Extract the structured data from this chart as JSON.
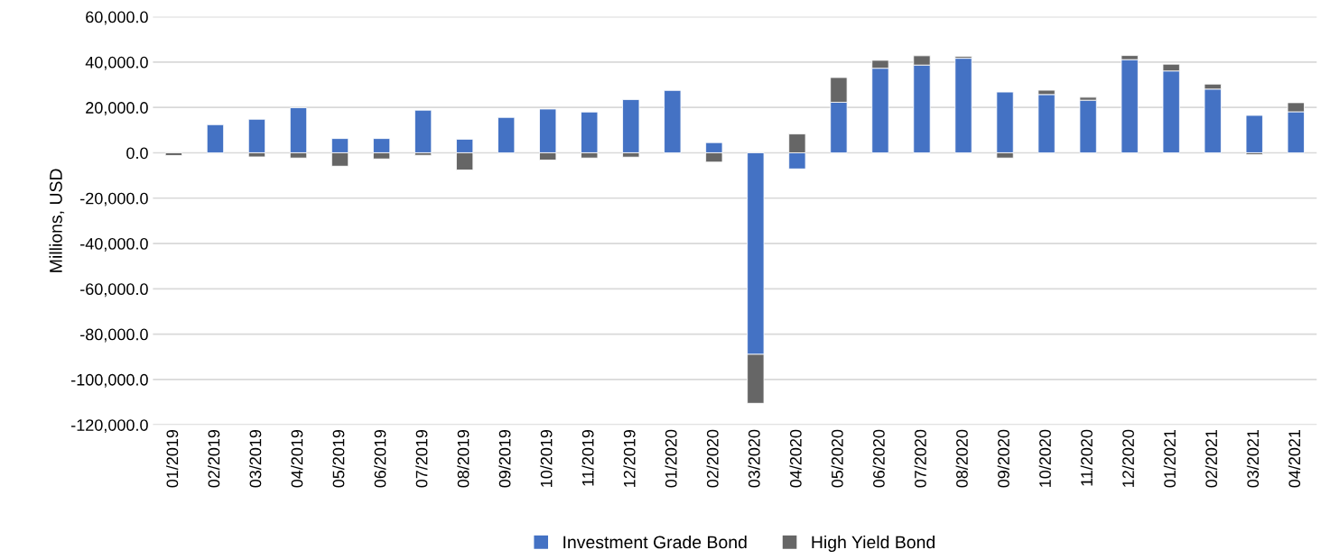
{
  "chart_data": {
    "type": "bar",
    "stacked": true,
    "ylabel": "Millions, USD",
    "categories": [
      "01/2019",
      "02/2019",
      "03/2019",
      "04/2019",
      "05/2019",
      "06/2019",
      "07/2019",
      "08/2019",
      "09/2019",
      "10/2019",
      "11/2019",
      "12/2019",
      "01/2020",
      "02/2020",
      "03/2020",
      "04/2020",
      "05/2020",
      "06/2020",
      "07/2020",
      "08/2020",
      "09/2020",
      "10/2020",
      "11/2020",
      "12/2020",
      "01/2021",
      "02/2021",
      "03/2021",
      "04/2021"
    ],
    "series": [
      {
        "name": "Investment Grade Bond",
        "color": "#4472c4",
        "values": [
          null,
          12400,
          14800,
          19900,
          6300,
          6300,
          18800,
          6000,
          15600,
          19300,
          18000,
          23500,
          27500,
          4500,
          -88900,
          -7100,
          22300,
          37300,
          38700,
          41700,
          26800,
          25700,
          23200,
          41100,
          36100,
          28100,
          16500,
          18100
        ]
      },
      {
        "name": "High Yield Bond",
        "color": "#666666",
        "values": [
          -1200,
          null,
          -1800,
          -2300,
          -5900,
          -2700,
          -1100,
          -7600,
          null,
          -3200,
          -2300,
          -1900,
          null,
          -4100,
          -21600,
          8300,
          10900,
          3500,
          4100,
          800,
          -2300,
          1900,
          1300,
          1800,
          3000,
          2200,
          -800,
          4000
        ]
      }
    ],
    "ylim": [
      -120000,
      60000
    ],
    "yticks": [
      {
        "value": -120000,
        "label": "-120,000.0"
      },
      {
        "value": -100000,
        "label": "-100,000.0"
      },
      {
        "value": -80000,
        "label": "-80,000.0"
      },
      {
        "value": -60000,
        "label": "-60,000.0"
      },
      {
        "value": -40000,
        "label": "-40,000.0"
      },
      {
        "value": -20000,
        "label": "-20,000.0"
      },
      {
        "value": 0,
        "label": "0.0"
      },
      {
        "value": 20000,
        "label": "20,000.0"
      },
      {
        "value": 40000,
        "label": "40,000.0"
      },
      {
        "value": 60000,
        "label": "60,000.0"
      }
    ],
    "grid": "y",
    "legend": "bottom"
  }
}
